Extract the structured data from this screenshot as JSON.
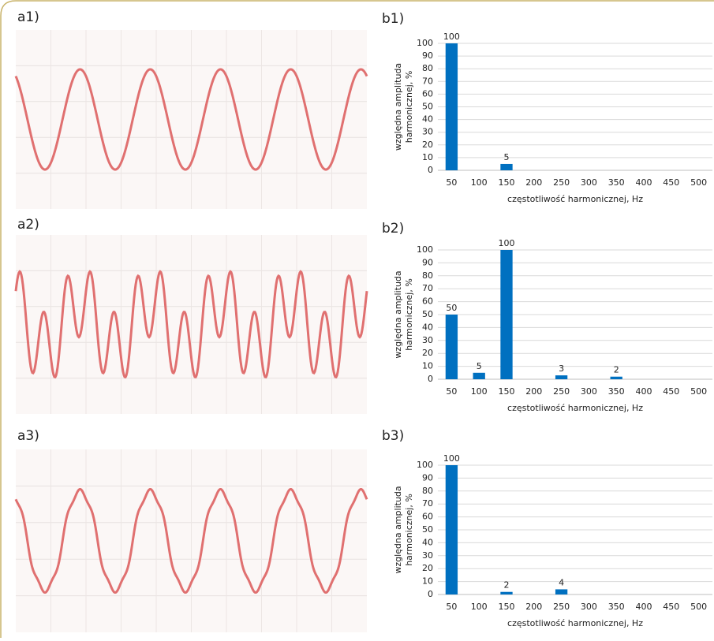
{
  "waveform_labels": [
    "a1)",
    "a2)",
    "a3)"
  ],
  "chart_data": [
    {
      "type": "bar",
      "title": "b1)",
      "categories": [
        50,
        100,
        150,
        200,
        250,
        300,
        350,
        400,
        450,
        500
      ],
      "values": [
        100,
        0,
        5,
        0,
        0,
        0,
        0,
        0,
        0,
        0
      ],
      "color": "#0070c0",
      "ylim": [
        0,
        100
      ],
      "yticks": [
        0,
        10,
        20,
        30,
        40,
        50,
        60,
        70,
        80,
        90,
        100
      ],
      "grid": true,
      "ylabel": [
        "względna amplituda",
        "harmonicznej, %"
      ],
      "xlabel": "częstotliwość harmonicznej, Hz"
    },
    {
      "type": "bar",
      "title": "b2)",
      "categories": [
        50,
        100,
        150,
        200,
        250,
        300,
        350,
        400,
        450,
        500
      ],
      "values": [
        50,
        5,
        100,
        0,
        3,
        0,
        2,
        0,
        0,
        0
      ],
      "color": "#0070c0",
      "ylim": [
        0,
        100
      ],
      "yticks": [
        0,
        10,
        20,
        30,
        40,
        50,
        60,
        70,
        80,
        90,
        100
      ],
      "grid": true,
      "ylabel": [
        "względna amplituda",
        "harmonicznej, %"
      ],
      "xlabel": "częstotliwość harmonicznej, Hz"
    },
    {
      "type": "bar",
      "title": "b3)",
      "categories": [
        50,
        100,
        150,
        200,
        250,
        300,
        350,
        400,
        450,
        500
      ],
      "values": [
        100,
        0,
        2,
        0,
        4,
        0,
        0,
        0,
        0,
        0
      ],
      "color": "#0070c0",
      "ylim": [
        0,
        100
      ],
      "yticks": [
        0,
        10,
        20,
        30,
        40,
        50,
        60,
        70,
        80,
        90,
        100
      ],
      "grid": true,
      "ylabel": [
        "względna amplituda",
        "harmonicznej, %"
      ],
      "xlabel": "częstotliwość harmonicznej, Hz"
    }
  ]
}
